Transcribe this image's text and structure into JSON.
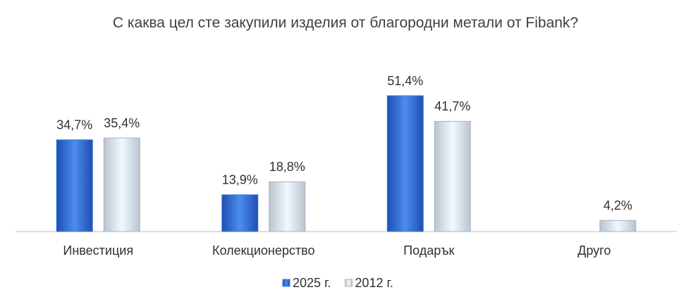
{
  "chart_data": {
    "type": "bar",
    "title": "С каква цел сте закупили изделия от благородни метали от Fibank?",
    "categories": [
      "Инвестиция",
      "Колекционерство",
      "Подарък",
      "Друго"
    ],
    "series": [
      {
        "name": "2025 г.",
        "color": "#3a78e0",
        "values": [
          34.7,
          13.9,
          51.4,
          null
        ],
        "value_labels": [
          "34,7%",
          "13,9%",
          "51,4%",
          null
        ]
      },
      {
        "name": "2012 г.",
        "color": "#ddeefa",
        "values": [
          35.4,
          18.8,
          41.7,
          4.2
        ],
        "value_labels": [
          "35,4%",
          "18,8%",
          "41,7%",
          "4,2%"
        ]
      }
    ],
    "legend": "bottom"
  }
}
